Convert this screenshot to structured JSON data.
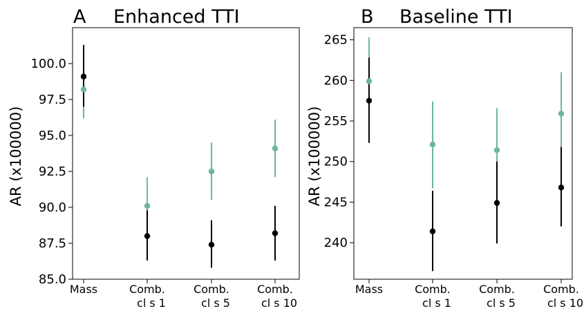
{
  "chart_data": [
    {
      "type": "scatter",
      "panel_label": "A",
      "title": "Enhanced TTI",
      "ylabel": "AR (x100000)",
      "xlabel": "",
      "categories": [
        [
          "Mass"
        ],
        [
          "Comb.",
          "cl s 1"
        ],
        [
          "Comb.",
          "cl s 5"
        ],
        [
          "Comb.",
          "cl s 10"
        ]
      ],
      "ylim": [
        85.0,
        102.5
      ],
      "yticks": [
        85.0,
        87.5,
        90.0,
        92.5,
        95.0,
        97.5,
        100.0
      ],
      "ytick_labels": [
        "85.0",
        "87.5",
        "90.0",
        "92.5",
        "95.0",
        "97.5",
        "100.0"
      ],
      "grid": false,
      "series": [
        {
          "color": "#6db795",
          "values": [
            98.2,
            90.1,
            92.5,
            94.1
          ],
          "lower": [
            96.2,
            88.1,
            90.5,
            92.1
          ],
          "upper": [
            100.3,
            92.1,
            94.5,
            96.1
          ]
        },
        {
          "color": "#000000",
          "values": [
            99.1,
            88.0,
            87.4,
            88.2
          ],
          "lower": [
            97.0,
            86.3,
            85.8,
            86.3
          ],
          "upper": [
            101.3,
            89.8,
            89.1,
            90.1
          ]
        }
      ]
    },
    {
      "type": "scatter",
      "panel_label": "B",
      "title": "Baseline TTI",
      "ylabel": "AR (x100000)",
      "xlabel": "",
      "categories": [
        [
          "Mass"
        ],
        [
          "Comb.",
          "cl s 1"
        ],
        [
          "Comb.",
          "cl s 5"
        ],
        [
          "Comb.",
          "cl s 10"
        ]
      ],
      "ylim": [
        235.5,
        266.5
      ],
      "yticks": [
        240,
        245,
        250,
        255,
        260,
        265
      ],
      "ytick_labels": [
        "240",
        "245",
        "250",
        "255",
        "260",
        "265"
      ],
      "grid": false,
      "series": [
        {
          "color": "#6db795",
          "values": [
            259.9,
            252.1,
            251.4,
            255.9
          ],
          "lower": [
            254.7,
            246.7,
            246.2,
            250.7
          ],
          "upper": [
            265.3,
            257.4,
            256.6,
            261.0
          ]
        },
        {
          "color": "#000000",
          "values": [
            257.5,
            241.4,
            244.9,
            246.8
          ],
          "lower": [
            252.3,
            236.5,
            239.9,
            242.0
          ],
          "upper": [
            262.8,
            246.4,
            250.0,
            251.8
          ]
        }
      ]
    }
  ]
}
